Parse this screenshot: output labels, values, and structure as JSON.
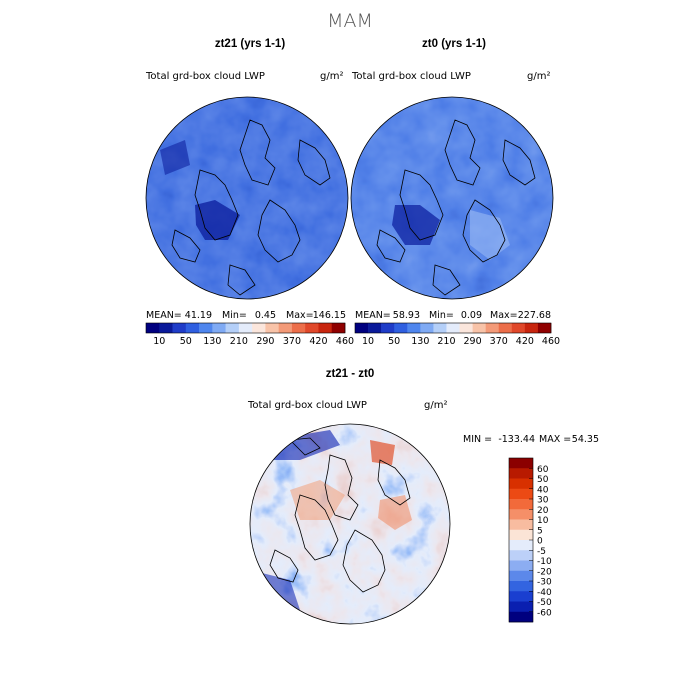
{
  "figure": {
    "title": "MAM",
    "colors": {
      "ocean_dark": "#0a1a8c",
      "ocean_mid": "#1f4fd8",
      "ocean_light": "#3d6fe0",
      "coast": "#000000"
    }
  },
  "chart_data": [
    {
      "type": "heatmap",
      "projection": "polar-stereographic",
      "title": "zt21 (yrs 1-1)",
      "subtitle": "Total grd-box cloud LWP",
      "units": "g/m²",
      "stats": {
        "mean_label": "MEAN=",
        "mean": "41.19",
        "min_label": "Min=",
        "min": "0.45",
        "max_label": "Max=",
        "max": "146.15"
      },
      "colorbar": {
        "ticks": [
          "10",
          "50",
          "130",
          "210",
          "290",
          "370",
          "420",
          "460"
        ],
        "colors": [
          "#00007f",
          "#0a1a9a",
          "#1f3cc8",
          "#2f5fe0",
          "#4f86ee",
          "#7faaf4",
          "#b4cff8",
          "#e4ecfb",
          "#fbe6dc",
          "#f8c3a8",
          "#f39a78",
          "#ec6e4a",
          "#e0482a",
          "#c8250e",
          "#8f0000"
        ]
      }
    },
    {
      "type": "heatmap",
      "projection": "polar-stereographic",
      "title": "zt0 (yrs 1-1)",
      "subtitle": "Total grd-box cloud LWP",
      "units": "g/m²",
      "stats": {
        "mean_label": "MEAN=",
        "mean": "58.93",
        "min_label": "Min=",
        "min": "0.09",
        "max_label": "Max=",
        "max": "227.68"
      },
      "colorbar": {
        "ticks": [
          "10",
          "50",
          "130",
          "210",
          "290",
          "370",
          "420",
          "460"
        ],
        "colors": [
          "#00007f",
          "#0a1a9a",
          "#1f3cc8",
          "#2f5fe0",
          "#4f86ee",
          "#7faaf4",
          "#b4cff8",
          "#e4ecfb",
          "#fbe6dc",
          "#f8c3a8",
          "#f39a78",
          "#ec6e4a",
          "#e0482a",
          "#c8250e",
          "#8f0000"
        ]
      }
    },
    {
      "type": "heatmap",
      "projection": "polar-stereographic",
      "title": "zt21 - zt0",
      "subtitle": "Total grd-box cloud LWP",
      "units": "g/m²",
      "stats": {
        "min_label": "MIN =",
        "min": "-133.44",
        "max_label": "MAX =",
        "max": "54.35"
      },
      "colorbar": {
        "orientation": "vertical",
        "ticks": [
          "60",
          "50",
          "40",
          "30",
          "20",
          "10",
          "5",
          "0",
          "-5",
          "-10",
          "-20",
          "-30",
          "-40",
          "-50",
          "-60"
        ],
        "colors": [
          "#8b0000",
          "#b81a00",
          "#d83000",
          "#ec4a14",
          "#f26a3a",
          "#f58f68",
          "#f8bca0",
          "#fbe4d6",
          "#e4ecfb",
          "#bcd0f8",
          "#8cadf2",
          "#5c88ea",
          "#3364e0",
          "#1a3fd0",
          "#0a1fb0",
          "#00007f"
        ]
      }
    }
  ]
}
